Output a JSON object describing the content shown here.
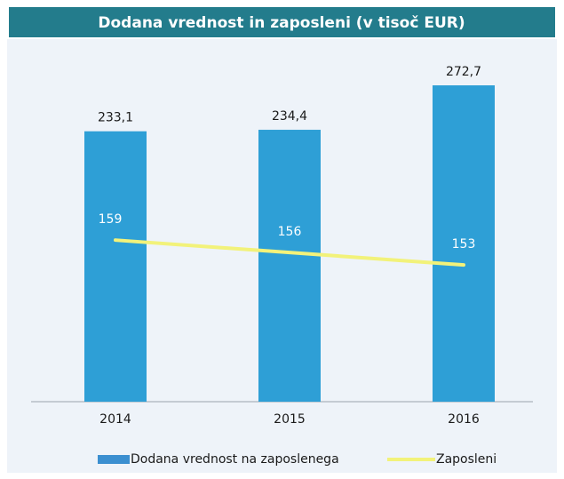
{
  "chart_data": {
    "type": "bar-line",
    "title": "Dodana vrednost in zaposleni (v tisoč EUR)",
    "categories": [
      "2014",
      "2015",
      "2016"
    ],
    "series": [
      {
        "name": "Dodana vrednost na zaposlenega",
        "type": "bar",
        "color": "#2e9fd6",
        "values": [
          233.1,
          234.4,
          272.7
        ],
        "value_labels": [
          "233,1",
          "234,4",
          "272,7"
        ]
      },
      {
        "name": "Zaposleni",
        "type": "line",
        "axis": "y2",
        "color": "#f2f27a",
        "values": [
          159,
          156,
          153
        ]
      }
    ],
    "ylim": [
      0,
      300
    ],
    "y2lim": [
      120,
      204
    ]
  }
}
